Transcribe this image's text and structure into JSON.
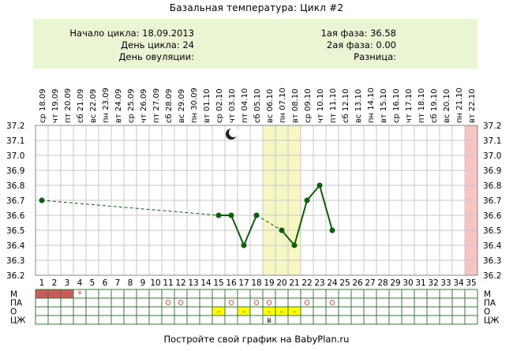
{
  "title": "Базальная температура: Цикл #2",
  "info": {
    "cycle_start": "Начало цикла: 18.09.2013",
    "cycle_day": "День цикла: 24",
    "ovulation_day": "День овуляции:",
    "phase1": "1ая фаза: 36.58",
    "phase2": "2ая фаза: 0.00",
    "difference": "Разница:"
  },
  "footer": "Постройте свой график на BabyPlan.ru",
  "colors": {
    "line": "#0b5e0b",
    "ovulation_band": "#f7f7c4",
    "right_band": "#f7c4c4",
    "menses_fill": "#c85a5a",
    "panel_bg": "#eaf5d4",
    "grid": "#c8c8c8",
    "marker_yellow": "#ffff00",
    "marker_circle": "#d9534f"
  },
  "chart_data": {
    "type": "line",
    "title": "Базальная температура: Цикл #2",
    "ylim": [
      36.2,
      37.2
    ],
    "y_ticks": [
      "37.2",
      "37.1",
      "37.0",
      "36.9",
      "36.8",
      "36.7",
      "36.6",
      "36.5",
      "36.4",
      "36.3",
      "36.2"
    ],
    "days": [
      1,
      2,
      3,
      4,
      5,
      6,
      7,
      8,
      9,
      10,
      11,
      12,
      13,
      14,
      15,
      16,
      17,
      18,
      19,
      20,
      21,
      22,
      23,
      24,
      25,
      26,
      27,
      28,
      29,
      30,
      31,
      32,
      33,
      34,
      35
    ],
    "weekdays": [
      "ср",
      "чт",
      "пт",
      "сб",
      "вс",
      "пн",
      "вт",
      "ср",
      "чт",
      "пт",
      "сб",
      "вс",
      "пн",
      "вт",
      "ср",
      "чт",
      "пт",
      "сб",
      "вс",
      "пн",
      "вт",
      "ср",
      "чт",
      "пт",
      "сб",
      "вс",
      "пн",
      "вт",
      "ср",
      "чт",
      "пт",
      "сб",
      "вс",
      "пн",
      "вт"
    ],
    "dates": [
      "18.09",
      "19.09",
      "20.09",
      "21.09",
      "22.09",
      "23.09",
      "24.09",
      "25.09",
      "26.09",
      "27.09",
      "28.09",
      "29.09",
      "30.09",
      "01.10",
      "02.10",
      "03.10",
      "04.10",
      "05.10",
      "06.10",
      "07.10",
      "08.10",
      "09.10",
      "10.10",
      "11.10",
      "12.10",
      "13.10",
      "14.10",
      "15.10",
      "16.10",
      "17.10",
      "18.10",
      "19.10",
      "20.10",
      "21.10",
      "22.10"
    ],
    "points": [
      {
        "day": 1,
        "temp": 36.7
      },
      {
        "day": 15,
        "temp": 36.6
      },
      {
        "day": 16,
        "temp": 36.6
      },
      {
        "day": 17,
        "temp": 36.4
      },
      {
        "day": 18,
        "temp": 36.6
      },
      {
        "day": 20,
        "temp": 36.5
      },
      {
        "day": 21,
        "temp": 36.4
      },
      {
        "day": 22,
        "temp": 36.7
      },
      {
        "day": 23,
        "temp": 36.8
      },
      {
        "day": 24,
        "temp": 36.5
      }
    ],
    "dashed_segments": [
      [
        1,
        15
      ],
      [
        18,
        20
      ]
    ],
    "solid_segments": [
      [
        15,
        16
      ],
      [
        16,
        17
      ],
      [
        17,
        18
      ],
      [
        20,
        21
      ],
      [
        21,
        22
      ],
      [
        22,
        23
      ],
      [
        23,
        24
      ]
    ],
    "ovulation_band_days": [
      19,
      21
    ],
    "right_band_days": [
      35,
      35
    ],
    "moon_day": 16,
    "rows": [
      {
        "label": "М",
        "right_label": "М"
      },
      {
        "label": "ПА",
        "right_label": "ПА"
      },
      {
        "label": "О",
        "right_label": "О"
      },
      {
        "label": "ЦЖ",
        "right_label": "ЦЖ"
      }
    ],
    "menses_days": [
      1,
      2,
      3
    ],
    "menses_star_day": 4,
    "star_symbol": "*",
    "pa_days": [
      11,
      12,
      16,
      18,
      19,
      22,
      24
    ],
    "o_dash_days": [
      15,
      17,
      19,
      20,
      21
    ],
    "o_dash_symbol": "–",
    "czh_marks": [
      {
        "day": 19,
        "text": "в"
      }
    ]
  }
}
